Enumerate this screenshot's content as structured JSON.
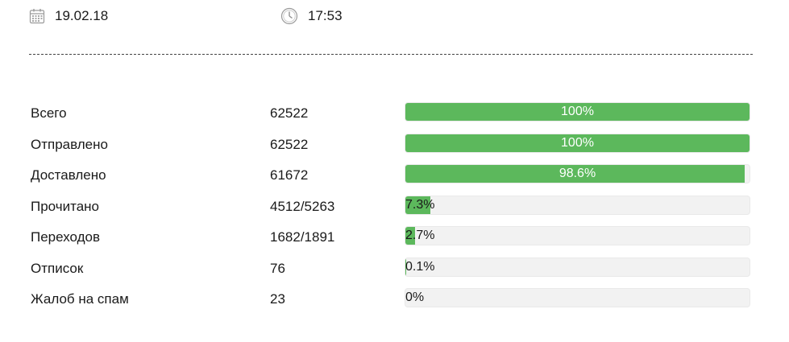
{
  "header": {
    "date": "19.02.18",
    "time": "17:53"
  },
  "icons": {
    "date": "calendar-icon",
    "time": "clock-icon"
  },
  "colors": {
    "bar_fill": "#5cb85c",
    "bar_track": "#f2f2f2"
  },
  "stats": [
    {
      "label": "Всего",
      "value": "62522",
      "percent": 100,
      "percent_label": "100%"
    },
    {
      "label": "Отправлено",
      "value": "62522",
      "percent": 100,
      "percent_label": "100%"
    },
    {
      "label": "Доставлено",
      "value": "61672",
      "percent": 98.6,
      "percent_label": "98.6%"
    },
    {
      "label": "Прочитано",
      "value": "4512/5263",
      "percent": 7.3,
      "percent_label": "7.3%"
    },
    {
      "label": "Переходов",
      "value": "1682/1891",
      "percent": 2.7,
      "percent_label": "2.7%"
    },
    {
      "label": "Отписок",
      "value": "76",
      "percent": 0.1,
      "percent_label": "0.1%"
    },
    {
      "label": "Жалоб на спам",
      "value": "23",
      "percent": 0,
      "percent_label": "0%"
    }
  ]
}
